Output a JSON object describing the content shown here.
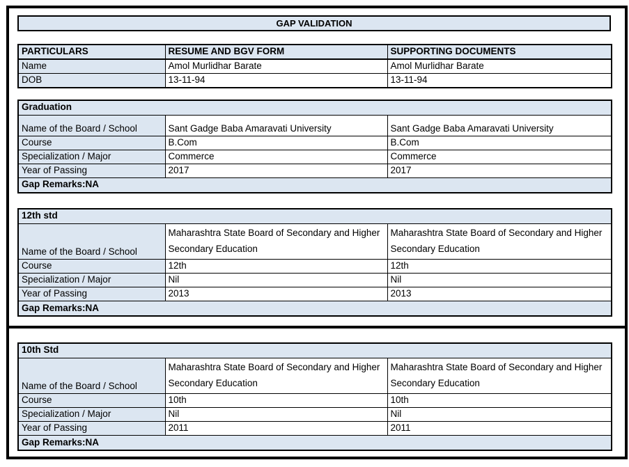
{
  "title": "GAP VALIDATION",
  "colors": {
    "cell_fill": "#dce6f1",
    "border": "#000000",
    "background": "#ffffff",
    "text": "#000000"
  },
  "main_table": {
    "headers": [
      "PARTICULARS",
      "RESUME AND BGV FORM",
      "SUPPORTING DOCUMENTS"
    ],
    "rows": [
      {
        "label": "Name",
        "resume": "Amol Murlidhar Barate",
        "supporting": "Amol Murlidhar Barate"
      },
      {
        "label": "DOB",
        "resume": "13-11-94",
        "supporting": "13-11-94"
      }
    ]
  },
  "sections": [
    {
      "title": "Graduation",
      "rows": [
        {
          "label": "Name of the Board / School",
          "resume": "Sant Gadge Baba Amaravati University",
          "supporting": "Sant Gadge Baba Amaravati University"
        },
        {
          "label": "Course",
          "resume": "B.Com",
          "supporting": "B.Com"
        },
        {
          "label": "Specialization / Major",
          "resume": "Commerce",
          "supporting": "Commerce"
        },
        {
          "label": "Year of Passing",
          "resume": "2017",
          "supporting": "2017"
        }
      ],
      "gap_remarks": "Gap Remarks:NA"
    },
    {
      "title": "12th std",
      "rows": [
        {
          "label": "Name of the Board / School",
          "resume": "Maharashtra State Board of Secondary and Higher Secondary Education",
          "supporting": "Maharashtra State Board of Secondary and Higher Secondary Education"
        },
        {
          "label": "Course",
          "resume": "12th",
          "supporting": "12th"
        },
        {
          "label": "Specialization / Major",
          "resume": "Nil",
          "supporting": "Nil"
        },
        {
          "label": "Year of Passing",
          "resume": "2013",
          "supporting": "2013"
        }
      ],
      "gap_remarks": "Gap Remarks:NA"
    },
    {
      "title": "10th Std",
      "rows": [
        {
          "label": "Name of the Board / School",
          "resume": "Maharashtra State Board of Secondary and Higher Secondary Education",
          "supporting": "Maharashtra State Board of Secondary and Higher Secondary Education"
        },
        {
          "label": "Course",
          "resume": "10th",
          "supporting": "10th"
        },
        {
          "label": "Specialization / Major",
          "resume": "Nil",
          "supporting": "Nil"
        },
        {
          "label": "Year of Passing",
          "resume": "2011",
          "supporting": "2011"
        }
      ],
      "gap_remarks": "Gap Remarks:NA"
    }
  ]
}
